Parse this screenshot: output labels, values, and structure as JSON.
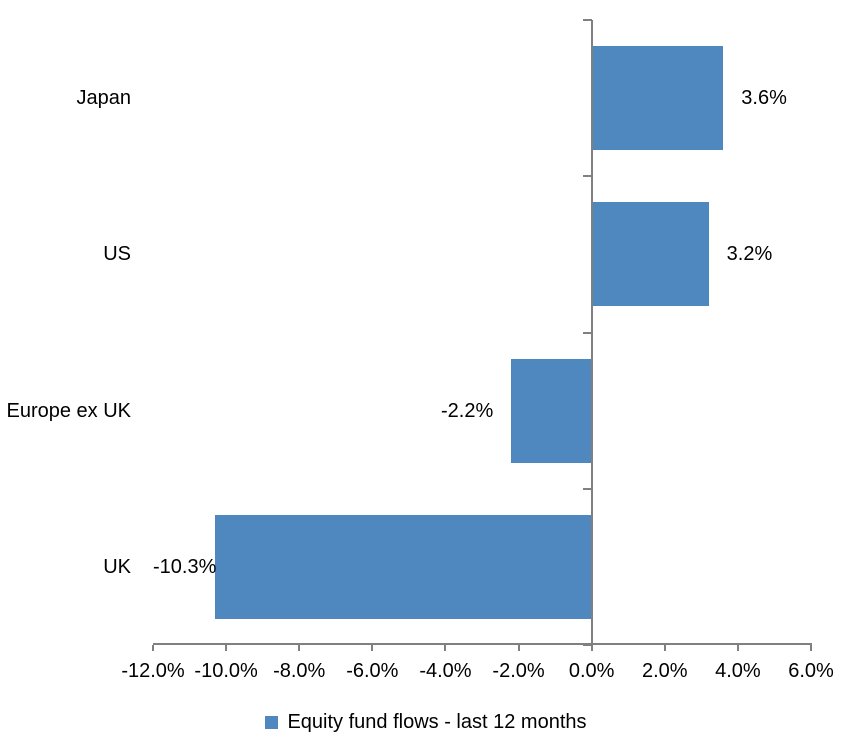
{
  "chart_data": {
    "type": "bar",
    "orientation": "horizontal",
    "title": "",
    "categories": [
      "Japan",
      "US",
      "Europe ex UK",
      "UK"
    ],
    "series": [
      {
        "name": "Equity fund flows - last 12 months",
        "values": [
          3.6,
          3.2,
          -2.2,
          -10.3
        ],
        "value_labels": [
          "3.6%",
          "3.2%",
          "-2.2%",
          "-10.3%"
        ],
        "color": "#4E88BF"
      }
    ],
    "x_axis": {
      "min": -12,
      "max": 6,
      "step": 2,
      "ticks": [
        -12,
        -10,
        -8,
        -6,
        -4,
        -2,
        0,
        2,
        4,
        6
      ],
      "tick_labels": [
        "-12.0%",
        "-10.0%",
        "-8.0%",
        "-6.0%",
        "-4.0%",
        "-2.0%",
        "0.0%",
        "2.0%",
        "4.0%",
        "6.0%"
      ],
      "line_color": "#808080"
    },
    "y_axis": {
      "line_color": "#808080"
    },
    "grid": false,
    "legend": {
      "position": "bottom",
      "label": "Equity fund flows - last 12 months",
      "marker_color": "#4E88BF"
    },
    "text_color": "#000000",
    "background": "#FFFFFF"
  }
}
